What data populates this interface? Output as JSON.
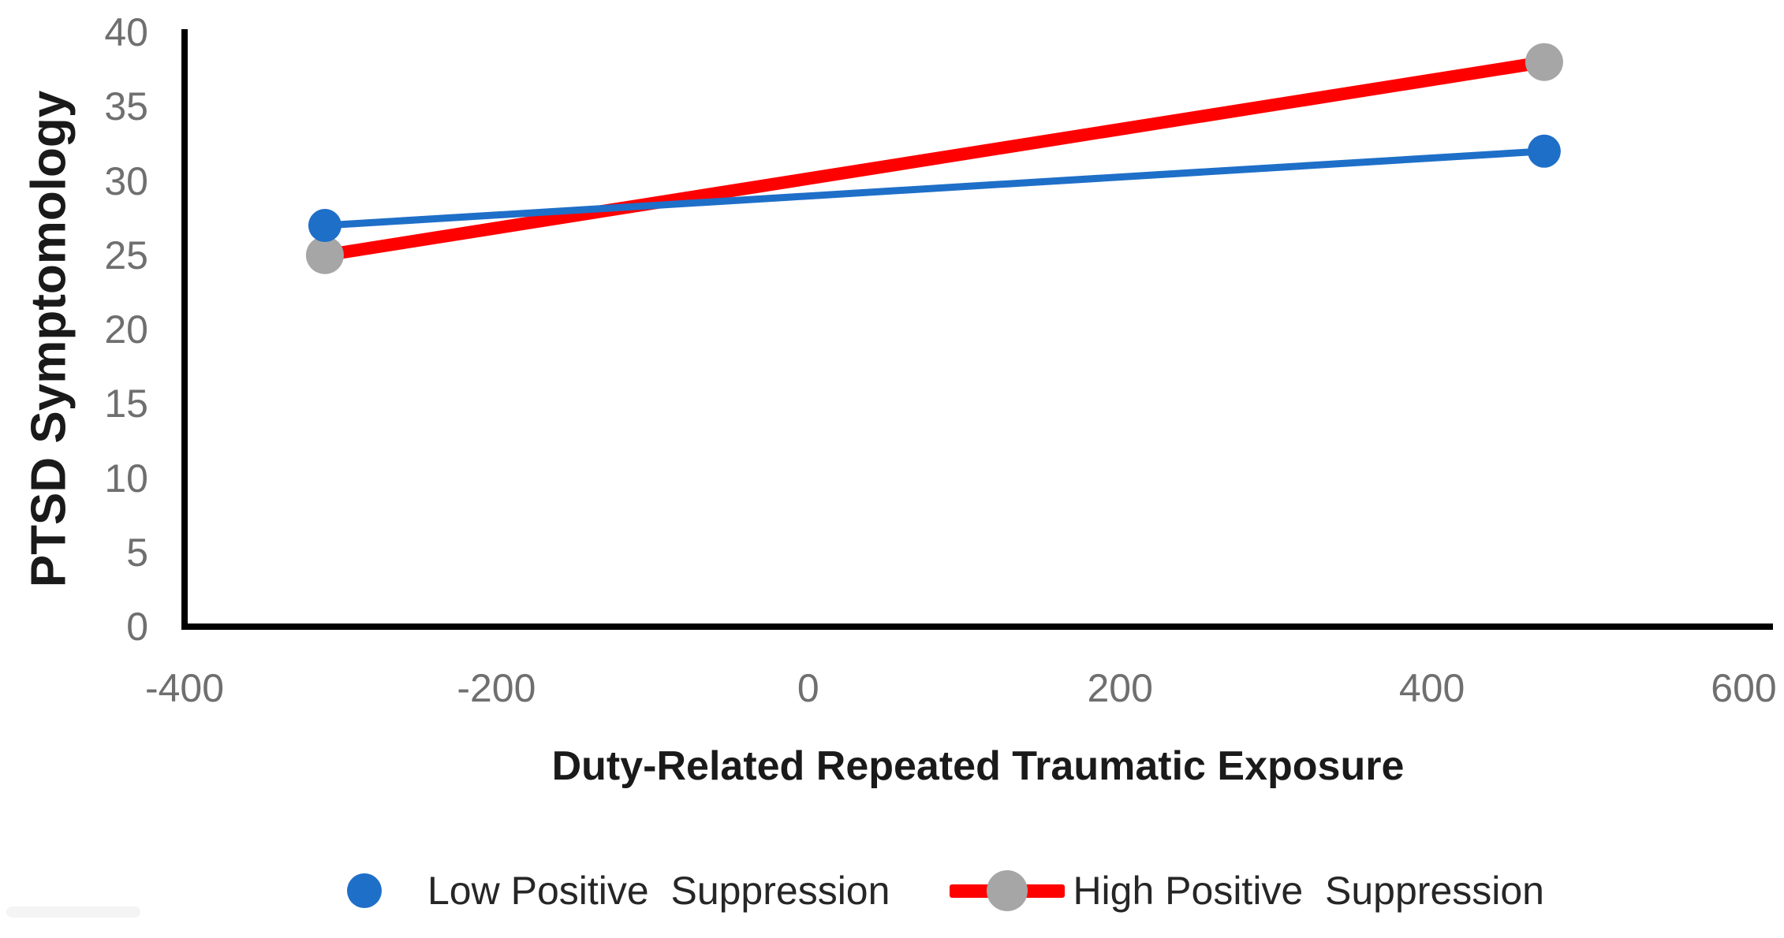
{
  "chart_data": {
    "type": "line",
    "title": "",
    "xlabel": "Duty-Related Repeated Traumatic Exposure",
    "ylabel": "PTSD Symptomology",
    "xlim": [
      -400,
      600
    ],
    "ylim": [
      0,
      40
    ],
    "x_tick_labels": [
      "-400",
      "-200",
      "0",
      "200",
      "400",
      "600"
    ],
    "x_tick_values": [
      -400,
      -200,
      0,
      200,
      400,
      600
    ],
    "y_tick_labels": [
      "0",
      "5",
      "10",
      "15",
      "20",
      "25",
      "30",
      "35",
      "40"
    ],
    "y_tick_values": [
      0,
      5,
      10,
      15,
      20,
      25,
      30,
      35,
      40
    ],
    "grid": false,
    "legend_position": "bottom",
    "axis_color": "#000000",
    "tick_label_color": "#6f6f6f",
    "title_color": "#1a1a1a",
    "series": [
      {
        "name": "Low Positive  Suppression",
        "color": "#1e6fc8",
        "marker_color": "#1e6fc8",
        "line_width": 9,
        "marker_radius": 21,
        "x": [
          -310,
          472
        ],
        "values": [
          27,
          32
        ]
      },
      {
        "name": "High Positive  Suppression",
        "color": "#ff0000",
        "marker_color": "#a6a6a6",
        "line_width": 16,
        "marker_radius": 24,
        "x": [
          -310,
          472
        ],
        "values": [
          25,
          38
        ]
      }
    ]
  },
  "legend": {
    "items": [
      {
        "label": "Low Positive  Suppression",
        "marker": "dot",
        "dot_color": "#1e6fc8"
      },
      {
        "label": "High Positive  Suppression",
        "marker": "line-dot",
        "line_color": "#ff0000",
        "dot_color": "#a6a6a6"
      }
    ]
  }
}
